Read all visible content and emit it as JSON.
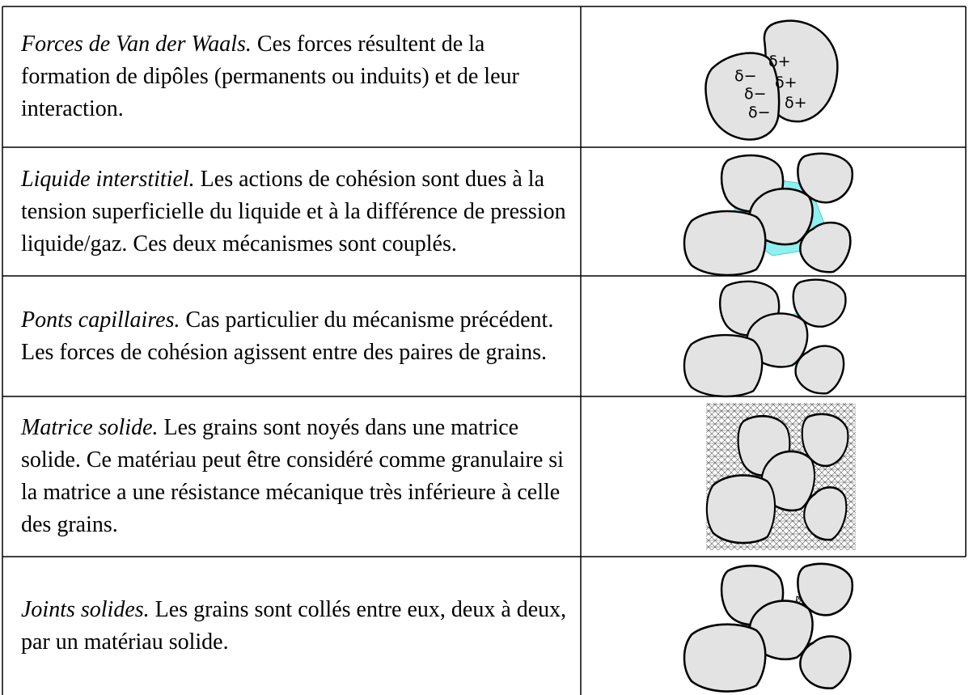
{
  "table": {
    "rows": [
      {
        "term": "Forces de Van der Waals.",
        "text": "Ces forces résultent de la formation de dipôles (permanents ou induits) et de leur interaction.",
        "figure_labels": [
          "δ−",
          "δ−",
          "δ−",
          "δ+",
          "δ+",
          "δ+"
        ]
      },
      {
        "term": "Liquide interstitiel.",
        "text": "Les actions de cohésion sont dues à la tension superficielle du liquide et à la différence de pression liquide/gaz. Ces deux mécanismes sont couplés."
      },
      {
        "term": "Ponts capillaires.",
        "text": "Cas particulier du mécanisme précédent. Les forces de cohésion agissent entre des paires de grains."
      },
      {
        "term": "Matrice solide.",
        "text": "Les grains sont noyés dans une matrice solide. Ce matériau peut être considéré comme granulaire si la matrice a une résistance mécanique très inférieure à celle des grains."
      },
      {
        "term": "Joints solides.",
        "text": "Les grains sont collés entre eux, deux à deux, par un matériau solide."
      }
    ]
  }
}
